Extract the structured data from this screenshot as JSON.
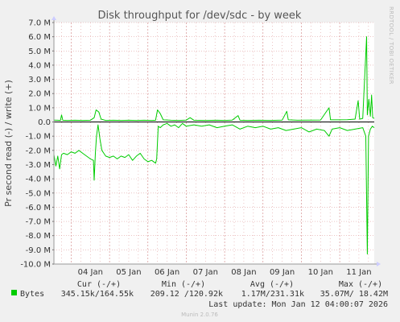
{
  "chart_data": {
    "type": "line",
    "title": "Disk throughput for /dev/sdc - by week",
    "ylabel": "Pr second read (-) / write (+)",
    "ylim": [
      -10000000,
      7000000
    ],
    "y_ticks": [
      "7.0 M",
      "6.0 M",
      "5.0 M",
      "4.0 M",
      "3.0 M",
      "2.0 M",
      "1.0 M",
      "0.0",
      "-1.0 M",
      "-2.0 M",
      "-3.0 M",
      "-4.0 M",
      "-5.0 M",
      "-6.0 M",
      "-7.0 M",
      "-8.0 M",
      "-9.0 M",
      "-10.0 M"
    ],
    "x_ticks": [
      "04 Jan",
      "05 Jan",
      "06 Jan",
      "07 Jan",
      "08 Jan",
      "09 Jan",
      "10 Jan",
      "11 Jan"
    ],
    "x_range_days": [
      3.55,
      11.9
    ],
    "grid": true,
    "colors": {
      "series": "#00cc00",
      "grid": "#e0a0a0",
      "background": "#ffffff",
      "zero_line": "#000000"
    },
    "series": [
      {
        "name": "Bytes (write)",
        "points": [
          [
            3.55,
            130000
          ],
          [
            3.65,
            120000
          ],
          [
            3.72,
            110000
          ],
          [
            3.75,
            500000
          ],
          [
            3.78,
            120000
          ],
          [
            3.9,
            110000
          ],
          [
            4.1,
            120000
          ],
          [
            4.3,
            110000
          ],
          [
            4.5,
            120000
          ],
          [
            4.6,
            300000
          ],
          [
            4.65,
            850000
          ],
          [
            4.72,
            700000
          ],
          [
            4.78,
            200000
          ],
          [
            4.9,
            110000
          ],
          [
            5.1,
            120000
          ],
          [
            5.3,
            110000
          ],
          [
            5.5,
            120000
          ],
          [
            5.7,
            110000
          ],
          [
            5.9,
            120000
          ],
          [
            6.1,
            110000
          ],
          [
            6.2,
            120000
          ],
          [
            6.25,
            850000
          ],
          [
            6.32,
            600000
          ],
          [
            6.4,
            150000
          ],
          [
            6.6,
            120000
          ],
          [
            6.8,
            110000
          ],
          [
            7.0,
            130000
          ],
          [
            7.1,
            300000
          ],
          [
            7.2,
            120000
          ],
          [
            7.5,
            110000
          ],
          [
            7.8,
            120000
          ],
          [
            8.0,
            110000
          ],
          [
            8.2,
            130000
          ],
          [
            8.35,
            450000
          ],
          [
            8.4,
            120000
          ],
          [
            8.6,
            110000
          ],
          [
            8.9,
            120000
          ],
          [
            9.2,
            110000
          ],
          [
            9.5,
            130000
          ],
          [
            9.62,
            750000
          ],
          [
            9.66,
            150000
          ],
          [
            9.9,
            120000
          ],
          [
            10.2,
            130000
          ],
          [
            10.5,
            140000
          ],
          [
            10.72,
            1000000
          ],
          [
            10.76,
            150000
          ],
          [
            11.0,
            150000
          ],
          [
            11.2,
            160000
          ],
          [
            11.4,
            200000
          ],
          [
            11.48,
            1500000
          ],
          [
            11.52,
            200000
          ],
          [
            11.6,
            250000
          ],
          [
            11.7,
            6000000
          ],
          [
            11.72,
            500000
          ],
          [
            11.76,
            1600000
          ],
          [
            11.8,
            400000
          ],
          [
            11.83,
            1900000
          ],
          [
            11.86,
            300000
          ],
          [
            11.9,
            250000
          ]
        ]
      },
      {
        "name": "Bytes (read)",
        "points": [
          [
            3.55,
            -2300000
          ],
          [
            3.6,
            -3100000
          ],
          [
            3.65,
            -2400000
          ],
          [
            3.7,
            -3300000
          ],
          [
            3.75,
            -2300000
          ],
          [
            3.8,
            -2200000
          ],
          [
            3.9,
            -2300000
          ],
          [
            4.0,
            -2100000
          ],
          [
            4.1,
            -2200000
          ],
          [
            4.2,
            -2000000
          ],
          [
            4.3,
            -2200000
          ],
          [
            4.4,
            -2400000
          ],
          [
            4.5,
            -2600000
          ],
          [
            4.58,
            -2700000
          ],
          [
            4.6,
            -4100000
          ],
          [
            4.63,
            -2200000
          ],
          [
            4.66,
            -1000000
          ],
          [
            4.7,
            -200000
          ],
          [
            4.75,
            -1200000
          ],
          [
            4.8,
            -2000000
          ],
          [
            4.9,
            -2400000
          ],
          [
            5.0,
            -2500000
          ],
          [
            5.1,
            -2400000
          ],
          [
            5.2,
            -2600000
          ],
          [
            5.3,
            -2400000
          ],
          [
            5.4,
            -2500000
          ],
          [
            5.5,
            -2300000
          ],
          [
            5.6,
            -2700000
          ],
          [
            5.7,
            -2400000
          ],
          [
            5.8,
            -2200000
          ],
          [
            5.9,
            -2600000
          ],
          [
            6.0,
            -2800000
          ],
          [
            6.1,
            -2700000
          ],
          [
            6.2,
            -2900000
          ],
          [
            6.23,
            -2600000
          ],
          [
            6.27,
            -300000
          ],
          [
            6.32,
            -400000
          ],
          [
            6.4,
            -200000
          ],
          [
            6.5,
            -100000
          ],
          [
            6.6,
            -300000
          ],
          [
            6.7,
            -200000
          ],
          [
            6.8,
            -400000
          ],
          [
            6.9,
            -100000
          ],
          [
            7.0,
            -300000
          ],
          [
            7.2,
            -200000
          ],
          [
            7.4,
            -300000
          ],
          [
            7.6,
            -200000
          ],
          [
            7.8,
            -400000
          ],
          [
            8.0,
            -300000
          ],
          [
            8.2,
            -200000
          ],
          [
            8.4,
            -500000
          ],
          [
            8.6,
            -300000
          ],
          [
            8.8,
            -400000
          ],
          [
            9.0,
            -300000
          ],
          [
            9.2,
            -500000
          ],
          [
            9.4,
            -400000
          ],
          [
            9.6,
            -600000
          ],
          [
            9.8,
            -500000
          ],
          [
            10.0,
            -400000
          ],
          [
            10.2,
            -700000
          ],
          [
            10.4,
            -500000
          ],
          [
            10.6,
            -600000
          ],
          [
            10.72,
            -1000000
          ],
          [
            10.8,
            -500000
          ],
          [
            11.0,
            -400000
          ],
          [
            11.2,
            -600000
          ],
          [
            11.4,
            -500000
          ],
          [
            11.6,
            -400000
          ],
          [
            11.68,
            -1000000
          ],
          [
            11.72,
            -9300000
          ],
          [
            11.75,
            -1000000
          ],
          [
            11.8,
            -500000
          ],
          [
            11.85,
            -300000
          ],
          [
            11.9,
            -400000
          ]
        ]
      }
    ]
  },
  "side_text": "RRDTOOL / TOBI OETIKER",
  "legend": {
    "headers": {
      "cur": "Cur (-/+)",
      "min": "Min (-/+)",
      "avg": "Avg (-/+)",
      "max": "Max (-/+)"
    },
    "row": {
      "name": "Bytes",
      "cur": "345.15k/164.55k",
      "min": "209.12 /120.92k",
      "avg": "1.17M/231.31k",
      "max": "35.07M/ 18.42M"
    },
    "color": "#00cc00"
  },
  "last_update": "Last update: Mon Jan 12 04:00:07 2026",
  "footer": "Munin 2.0.76"
}
